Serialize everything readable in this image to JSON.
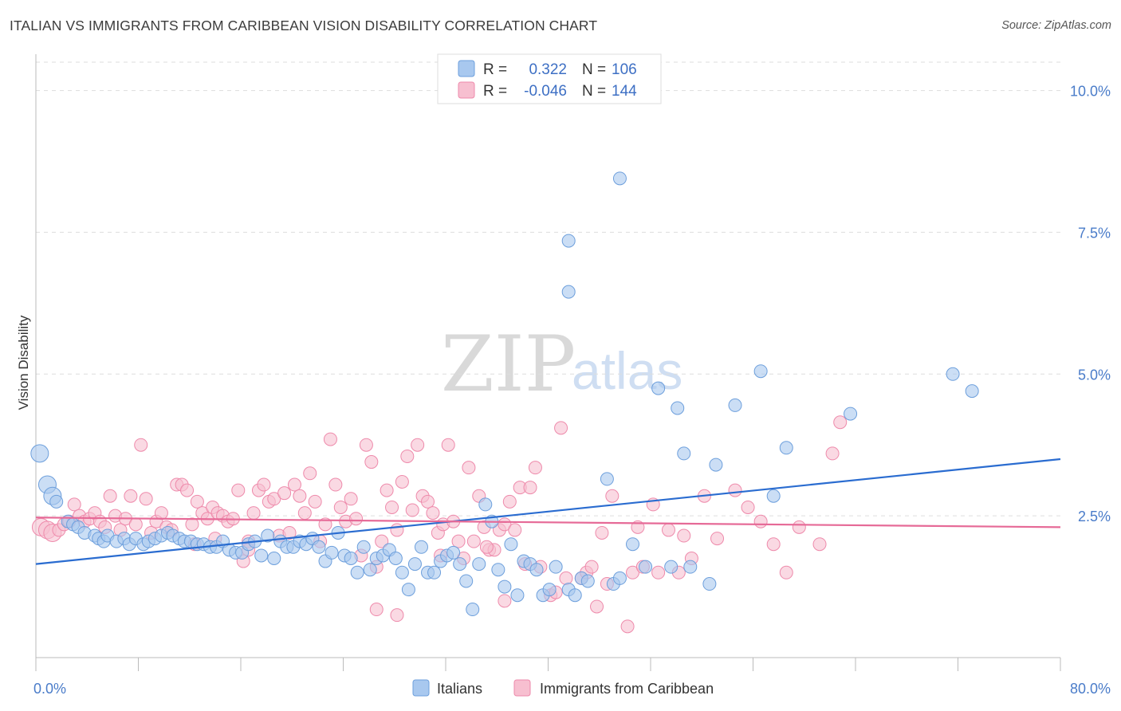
{
  "title": "ITALIAN VS IMMIGRANTS FROM CARIBBEAN VISION DISABILITY CORRELATION CHART",
  "source": "Source: ZipAtlas.com",
  "watermark": {
    "zip": "ZIP",
    "atlas": "atlas"
  },
  "colors": {
    "blue_fill": "#a8c8ef",
    "blue_stroke": "#6d9fdc",
    "blue_line": "#2a6cd0",
    "pink_fill": "#f7bfd0",
    "pink_stroke": "#ee8aab",
    "pink_line": "#e66a97",
    "tick_label": "#4a7cc9",
    "grid": "#dddddd"
  },
  "legend_box": {
    "rows": [
      {
        "r_label": "R =",
        "r_value": "0.322",
        "n_label": "N =",
        "n_value": "106",
        "color": "blue"
      },
      {
        "r_label": "R =",
        "r_value": "-0.046",
        "n_label": "N =",
        "n_value": "144",
        "color": "pink"
      }
    ]
  },
  "bottom_legend": [
    {
      "label": "Italians",
      "color": "blue"
    },
    {
      "label": "Immigrants from Caribbean",
      "color": "pink"
    }
  ],
  "chart_data": {
    "type": "scatter",
    "title": "ITALIAN VS IMMIGRANTS FROM CARIBBEAN VISION DISABILITY CORRELATION CHART",
    "xlabel": "",
    "ylabel": "Vision Disability",
    "xlim": [
      0,
      80
    ],
    "ylim": [
      0,
      10.5
    ],
    "x_tick_labels": [
      "0.0%",
      "80.0%"
    ],
    "y_ticks": [
      2.5,
      5.0,
      7.5,
      10.0
    ],
    "y_tick_labels": [
      "2.5%",
      "5.0%",
      "7.5%",
      "10.0%"
    ],
    "grid": true,
    "legend_position": "top-center",
    "series": [
      {
        "name": "Italians",
        "color": "blue",
        "trend": {
          "x": [
            0,
            80
          ],
          "y": [
            1.65,
            3.5
          ]
        },
        "points": [
          [
            0.3,
            3.6
          ],
          [
            0.9,
            3.05
          ],
          [
            1.3,
            2.85
          ],
          [
            1.6,
            2.75
          ],
          [
            2.5,
            2.4
          ],
          [
            2.9,
            2.35
          ],
          [
            3.3,
            2.3
          ],
          [
            3.8,
            2.2
          ],
          [
            4.6,
            2.15
          ],
          [
            4.9,
            2.1
          ],
          [
            5.3,
            2.05
          ],
          [
            5.6,
            2.15
          ],
          [
            6.3,
            2.05
          ],
          [
            6.9,
            2.1
          ],
          [
            7.3,
            2.0
          ],
          [
            7.8,
            2.1
          ],
          [
            8.4,
            2.0
          ],
          [
            8.8,
            2.05
          ],
          [
            9.3,
            2.1
          ],
          [
            9.8,
            2.15
          ],
          [
            10.3,
            2.2
          ],
          [
            10.7,
            2.15
          ],
          [
            11.2,
            2.1
          ],
          [
            11.6,
            2.05
          ],
          [
            12.1,
            2.05
          ],
          [
            12.6,
            2.0
          ],
          [
            13.1,
            2.0
          ],
          [
            13.6,
            1.95
          ],
          [
            14.1,
            1.95
          ],
          [
            14.6,
            2.05
          ],
          [
            15.1,
            1.9
          ],
          [
            15.6,
            1.85
          ],
          [
            16.1,
            1.85
          ],
          [
            16.6,
            2.0
          ],
          [
            17.1,
            2.05
          ],
          [
            17.6,
            1.8
          ],
          [
            18.1,
            2.15
          ],
          [
            18.6,
            1.75
          ],
          [
            19.1,
            2.05
          ],
          [
            19.6,
            1.95
          ],
          [
            20.1,
            1.95
          ],
          [
            20.6,
            2.05
          ],
          [
            21.1,
            2.0
          ],
          [
            21.6,
            2.1
          ],
          [
            22.1,
            1.95
          ],
          [
            22.6,
            1.7
          ],
          [
            23.1,
            1.85
          ],
          [
            23.6,
            2.2
          ],
          [
            24.1,
            1.8
          ],
          [
            24.6,
            1.75
          ],
          [
            25.1,
            1.5
          ],
          [
            25.6,
            1.95
          ],
          [
            26.1,
            1.55
          ],
          [
            26.6,
            1.75
          ],
          [
            27.1,
            1.8
          ],
          [
            27.6,
            1.9
          ],
          [
            28.1,
            1.75
          ],
          [
            28.6,
            1.5
          ],
          [
            29.1,
            1.2
          ],
          [
            29.6,
            1.65
          ],
          [
            30.1,
            1.95
          ],
          [
            30.6,
            1.5
          ],
          [
            31.1,
            1.5
          ],
          [
            31.6,
            1.7
          ],
          [
            32.1,
            1.8
          ],
          [
            32.6,
            1.85
          ],
          [
            33.1,
            1.65
          ],
          [
            33.6,
            1.35
          ],
          [
            34.1,
            0.85
          ],
          [
            34.6,
            1.65
          ],
          [
            35.1,
            2.7
          ],
          [
            35.6,
            2.4
          ],
          [
            36.1,
            1.55
          ],
          [
            36.6,
            1.25
          ],
          [
            37.1,
            2.0
          ],
          [
            37.6,
            1.1
          ],
          [
            38.1,
            1.7
          ],
          [
            38.6,
            1.65
          ],
          [
            39.1,
            1.55
          ],
          [
            39.6,
            1.1
          ],
          [
            40.1,
            1.2
          ],
          [
            40.6,
            1.6
          ],
          [
            41.6,
            1.2
          ],
          [
            42.1,
            1.1
          ],
          [
            42.6,
            1.4
          ],
          [
            43.1,
            1.35
          ],
          [
            44.6,
            3.15
          ],
          [
            45.1,
            1.3
          ],
          [
            45.6,
            1.4
          ],
          [
            46.6,
            2.0
          ],
          [
            47.6,
            1.6
          ],
          [
            48.6,
            4.75
          ],
          [
            49.6,
            1.6
          ],
          [
            50.1,
            4.4
          ],
          [
            50.6,
            3.6
          ],
          [
            51.1,
            1.6
          ],
          [
            52.6,
            1.3
          ],
          [
            53.1,
            3.4
          ],
          [
            54.6,
            4.45
          ],
          [
            56.6,
            5.05
          ],
          [
            57.6,
            2.85
          ],
          [
            58.6,
            3.7
          ],
          [
            63.6,
            4.3
          ],
          [
            71.6,
            5.0
          ],
          [
            73.1,
            4.7
          ],
          [
            41.6,
            6.45
          ],
          [
            41.6,
            7.35
          ],
          [
            45.6,
            8.45
          ]
        ]
      },
      {
        "name": "Immigrants from Caribbean",
        "color": "pink",
        "trend": {
          "x": [
            0,
            80
          ],
          "y": [
            2.47,
            2.3
          ]
        },
        "points": [
          [
            0.4,
            2.3
          ],
          [
            0.9,
            2.25
          ],
          [
            1.3,
            2.2
          ],
          [
            1.8,
            2.25
          ],
          [
            2.2,
            2.35
          ],
          [
            2.6,
            2.4
          ],
          [
            3.0,
            2.7
          ],
          [
            3.4,
            2.5
          ],
          [
            3.8,
            2.4
          ],
          [
            4.2,
            2.45
          ],
          [
            4.6,
            2.55
          ],
          [
            5.0,
            2.4
          ],
          [
            5.4,
            2.3
          ],
          [
            5.8,
            2.85
          ],
          [
            6.2,
            2.5
          ],
          [
            6.6,
            2.25
          ],
          [
            7.0,
            2.45
          ],
          [
            7.4,
            2.85
          ],
          [
            7.8,
            2.35
          ],
          [
            8.2,
            3.75
          ],
          [
            8.6,
            2.8
          ],
          [
            9.0,
            2.2
          ],
          [
            9.4,
            2.4
          ],
          [
            9.8,
            2.55
          ],
          [
            10.2,
            2.3
          ],
          [
            10.6,
            2.25
          ],
          [
            11.0,
            3.05
          ],
          [
            11.4,
            3.05
          ],
          [
            11.8,
            2.95
          ],
          [
            12.2,
            2.35
          ],
          [
            12.6,
            2.75
          ],
          [
            13.0,
            2.55
          ],
          [
            13.4,
            2.45
          ],
          [
            13.8,
            2.65
          ],
          [
            14.2,
            2.55
          ],
          [
            14.6,
            2.5
          ],
          [
            15.0,
            2.4
          ],
          [
            15.4,
            2.45
          ],
          [
            15.8,
            2.95
          ],
          [
            16.2,
            1.7
          ],
          [
            16.6,
            2.05
          ],
          [
            17.0,
            2.55
          ],
          [
            17.4,
            2.95
          ],
          [
            17.8,
            3.05
          ],
          [
            18.2,
            2.75
          ],
          [
            18.6,
            2.8
          ],
          [
            19.0,
            2.15
          ],
          [
            19.4,
            2.9
          ],
          [
            19.8,
            2.2
          ],
          [
            20.2,
            3.05
          ],
          [
            20.6,
            2.85
          ],
          [
            21.0,
            2.55
          ],
          [
            21.4,
            3.25
          ],
          [
            21.8,
            2.75
          ],
          [
            22.2,
            2.05
          ],
          [
            22.6,
            2.35
          ],
          [
            23.0,
            3.85
          ],
          [
            23.4,
            3.05
          ],
          [
            23.8,
            2.65
          ],
          [
            24.2,
            2.4
          ],
          [
            24.6,
            2.8
          ],
          [
            25.0,
            2.45
          ],
          [
            25.4,
            1.8
          ],
          [
            25.8,
            3.75
          ],
          [
            26.2,
            3.45
          ],
          [
            26.6,
            1.6
          ],
          [
            27.0,
            2.05
          ],
          [
            27.4,
            2.95
          ],
          [
            27.8,
            2.65
          ],
          [
            28.2,
            2.25
          ],
          [
            28.6,
            3.1
          ],
          [
            29.0,
            3.55
          ],
          [
            29.4,
            2.6
          ],
          [
            29.8,
            3.75
          ],
          [
            30.2,
            2.85
          ],
          [
            30.6,
            2.75
          ],
          [
            31.0,
            2.55
          ],
          [
            31.4,
            2.2
          ],
          [
            31.8,
            2.35
          ],
          [
            32.2,
            3.75
          ],
          [
            32.6,
            2.4
          ],
          [
            33.0,
            2.05
          ],
          [
            33.4,
            1.75
          ],
          [
            33.8,
            3.35
          ],
          [
            34.2,
            2.05
          ],
          [
            34.6,
            2.85
          ],
          [
            35.0,
            2.3
          ],
          [
            35.4,
            1.9
          ],
          [
            35.8,
            1.9
          ],
          [
            36.2,
            2.25
          ],
          [
            36.6,
            2.35
          ],
          [
            37.0,
            2.75
          ],
          [
            37.4,
            2.25
          ],
          [
            37.8,
            3.0
          ],
          [
            38.2,
            1.65
          ],
          [
            38.6,
            3.0
          ],
          [
            39.0,
            3.35
          ],
          [
            39.4,
            1.6
          ],
          [
            40.2,
            1.1
          ],
          [
            40.6,
            1.15
          ],
          [
            41.0,
            4.05
          ],
          [
            41.4,
            1.4
          ],
          [
            42.6,
            1.4
          ],
          [
            43.0,
            1.5
          ],
          [
            43.4,
            1.6
          ],
          [
            43.8,
            0.9
          ],
          [
            44.2,
            2.2
          ],
          [
            44.6,
            1.3
          ],
          [
            45.0,
            2.85
          ],
          [
            46.2,
            0.55
          ],
          [
            46.6,
            1.5
          ],
          [
            47.0,
            2.3
          ],
          [
            47.4,
            1.6
          ],
          [
            48.2,
            2.7
          ],
          [
            48.6,
            1.5
          ],
          [
            49.4,
            2.25
          ],
          [
            50.2,
            1.5
          ],
          [
            50.6,
            2.15
          ],
          [
            51.2,
            1.75
          ],
          [
            52.2,
            2.85
          ],
          [
            53.2,
            2.1
          ],
          [
            54.6,
            2.95
          ],
          [
            55.6,
            2.65
          ],
          [
            56.6,
            2.4
          ],
          [
            57.6,
            2.0
          ],
          [
            58.6,
            1.5
          ],
          [
            59.6,
            2.3
          ],
          [
            61.2,
            2.0
          ],
          [
            62.2,
            3.6
          ],
          [
            62.8,
            4.15
          ],
          [
            26.6,
            0.85
          ],
          [
            28.2,
            0.75
          ],
          [
            35.2,
            1.95
          ],
          [
            36.6,
            1.0
          ],
          [
            16.6,
            1.9
          ],
          [
            31.6,
            1.8
          ],
          [
            14.0,
            2.1
          ],
          [
            12.4,
            2.0
          ]
        ]
      }
    ]
  }
}
